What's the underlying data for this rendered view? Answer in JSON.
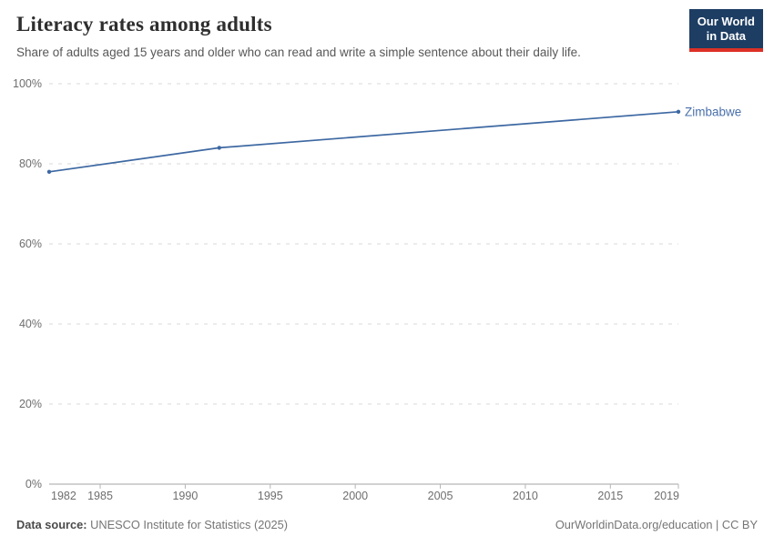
{
  "header": {
    "title": "Literacy rates among adults",
    "subtitle": "Share of adults aged 15 years and older who can read and write a simple sentence about their daily life."
  },
  "logo": {
    "line1": "Our World",
    "line2": "in Data",
    "bg_color": "#1d3d63",
    "accent_color": "#dc3026"
  },
  "chart_data": {
    "type": "line",
    "title": "Literacy rates among adults",
    "subtitle": "Share of adults aged 15 years and older who can read and write a simple sentence about their daily life.",
    "xlabel": "",
    "ylabel": "",
    "xlim": [
      1982,
      2019
    ],
    "ylim": [
      0,
      100
    ],
    "xticks": [
      1982,
      1985,
      1990,
      1995,
      2000,
      2005,
      2010,
      2015,
      2019
    ],
    "yticks": [
      0,
      20,
      40,
      60,
      80,
      100
    ],
    "ytick_suffix": "%",
    "grid": "horizontal-dashed",
    "legend_position": "end-of-line-label",
    "series": [
      {
        "name": "Zimbabwe",
        "color": "#3d68a2",
        "label_color": "#4a70ab",
        "points": [
          {
            "x": 1982,
            "y": 78
          },
          {
            "x": 1992,
            "y": 84
          },
          {
            "x": 2019,
            "y": 93
          }
        ]
      }
    ]
  },
  "footer": {
    "datasource_label": "Data source:",
    "datasource_value": "UNESCO Institute for Statistics (2025)",
    "license_text": "OurWorldinData.org/education | CC BY"
  }
}
